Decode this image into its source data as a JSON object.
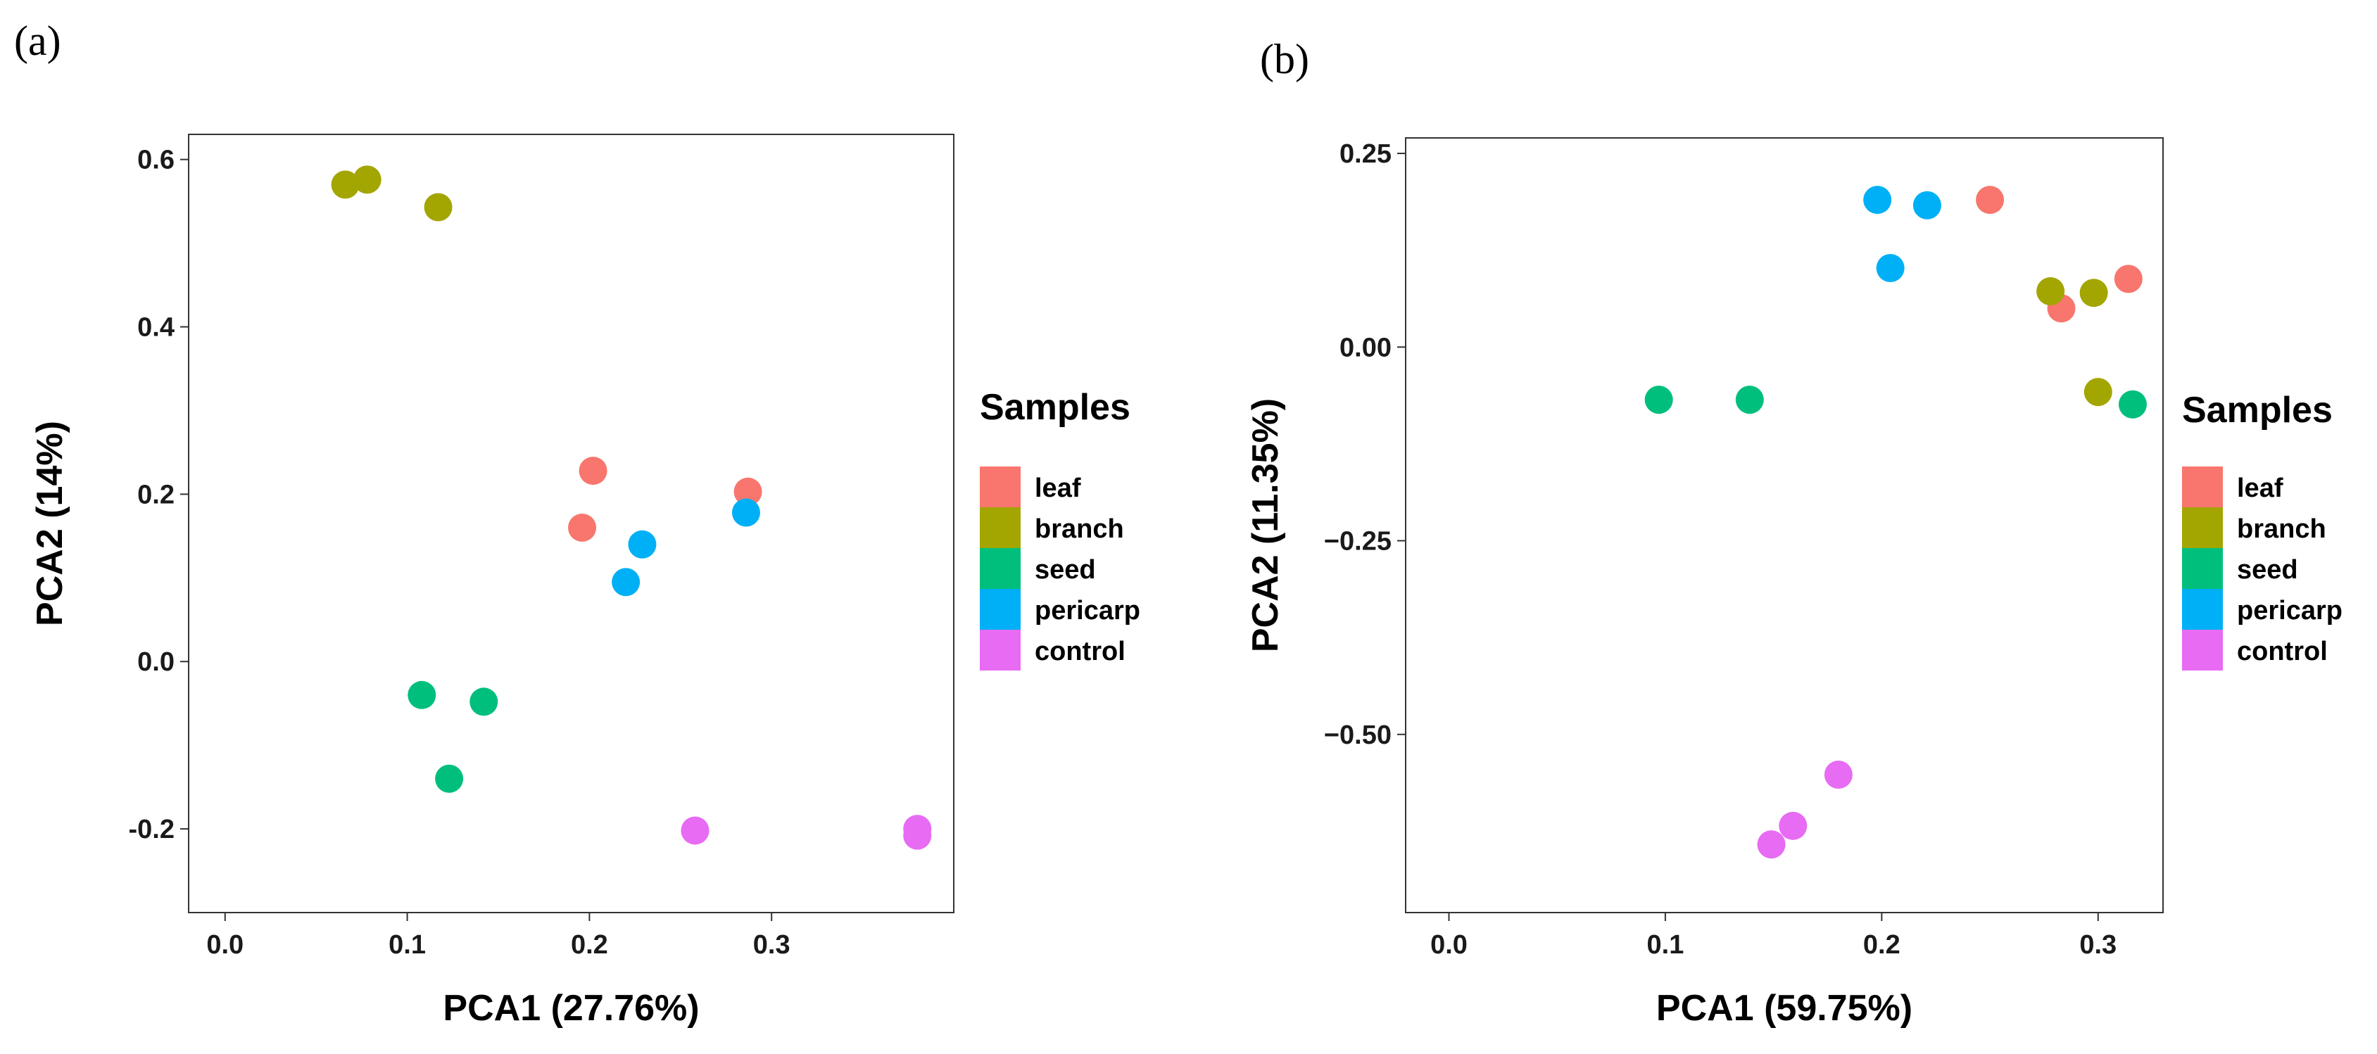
{
  "colors": {
    "leaf": "#F8766D",
    "branch": "#A3A500",
    "seed": "#00BF7D",
    "pericarp": "#00B0F6",
    "control": "#E76BF3"
  },
  "chart_data": [
    {
      "type": "scatter",
      "panel_label": "(a)",
      "xlabel": "PCA1 (27.76%)",
      "ylabel": "PCA2 (14%)",
      "xlim": [
        -0.02,
        0.4
      ],
      "ylim": [
        -0.3,
        0.63
      ],
      "xticks": [
        0.0,
        0.1,
        0.2,
        0.3
      ],
      "xtick_labels": [
        "0.0",
        "0.1",
        "0.2",
        "0.3"
      ],
      "yticks": [
        -0.2,
        0.0,
        0.2,
        0.4,
        0.6
      ],
      "ytick_labels": [
        "-0.2",
        "0.0",
        "0.2",
        "0.4",
        "0.6"
      ],
      "legend": {
        "title": "Samples",
        "position": "right",
        "entries": [
          "leaf",
          "branch",
          "seed",
          "pericarp",
          "control"
        ]
      },
      "series": [
        {
          "name": "leaf",
          "x": [
            0.202,
            0.196,
            0.287
          ],
          "y": [
            0.228,
            0.16,
            0.203
          ]
        },
        {
          "name": "branch",
          "x": [
            0.066,
            0.078,
            0.117
          ],
          "y": [
            0.57,
            0.576,
            0.543
          ]
        },
        {
          "name": "seed",
          "x": [
            0.108,
            0.142,
            0.123
          ],
          "y": [
            -0.04,
            -0.048,
            -0.14
          ]
        },
        {
          "name": "pericarp",
          "x": [
            0.229,
            0.22,
            0.286
          ],
          "y": [
            0.14,
            0.095,
            0.178
          ]
        },
        {
          "name": "control",
          "x": [
            0.258,
            0.38,
            0.38
          ],
          "y": [
            -0.202,
            -0.2,
            -0.208
          ]
        }
      ]
    },
    {
      "type": "scatter",
      "panel_label": "(b)",
      "xlabel": "PCA1 (59.75%)",
      "ylabel": "PCA2 (11.35%)",
      "xlim": [
        -0.02,
        0.33
      ],
      "ylim": [
        -0.73,
        0.27
      ],
      "xticks": [
        0.0,
        0.1,
        0.2,
        0.3
      ],
      "xtick_labels": [
        "0.0",
        "0.1",
        "0.2",
        "0.3"
      ],
      "yticks": [
        -0.5,
        -0.25,
        0.0,
        0.25
      ],
      "ytick_labels": [
        "−0.50",
        "−0.25",
        "0.00",
        "0.25"
      ],
      "legend": {
        "title": "Samples",
        "position": "right",
        "entries": [
          "leaf",
          "branch",
          "seed",
          "pericarp",
          "control"
        ]
      },
      "series": [
        {
          "name": "leaf",
          "x": [
            0.25,
            0.283,
            0.314
          ],
          "y": [
            0.19,
            0.05,
            0.088
          ]
        },
        {
          "name": "branch",
          "x": [
            0.278,
            0.298,
            0.3
          ],
          "y": [
            0.072,
            0.07,
            -0.058
          ]
        },
        {
          "name": "seed",
          "x": [
            0.097,
            0.139,
            0.316
          ],
          "y": [
            -0.068,
            -0.068,
            -0.074
          ]
        },
        {
          "name": "pericarp",
          "x": [
            0.198,
            0.221,
            0.204
          ],
          "y": [
            0.19,
            0.183,
            0.102
          ]
        },
        {
          "name": "control",
          "x": [
            0.149,
            0.159,
            0.18
          ],
          "y": [
            -0.642,
            -0.618,
            -0.552
          ]
        }
      ]
    }
  ]
}
